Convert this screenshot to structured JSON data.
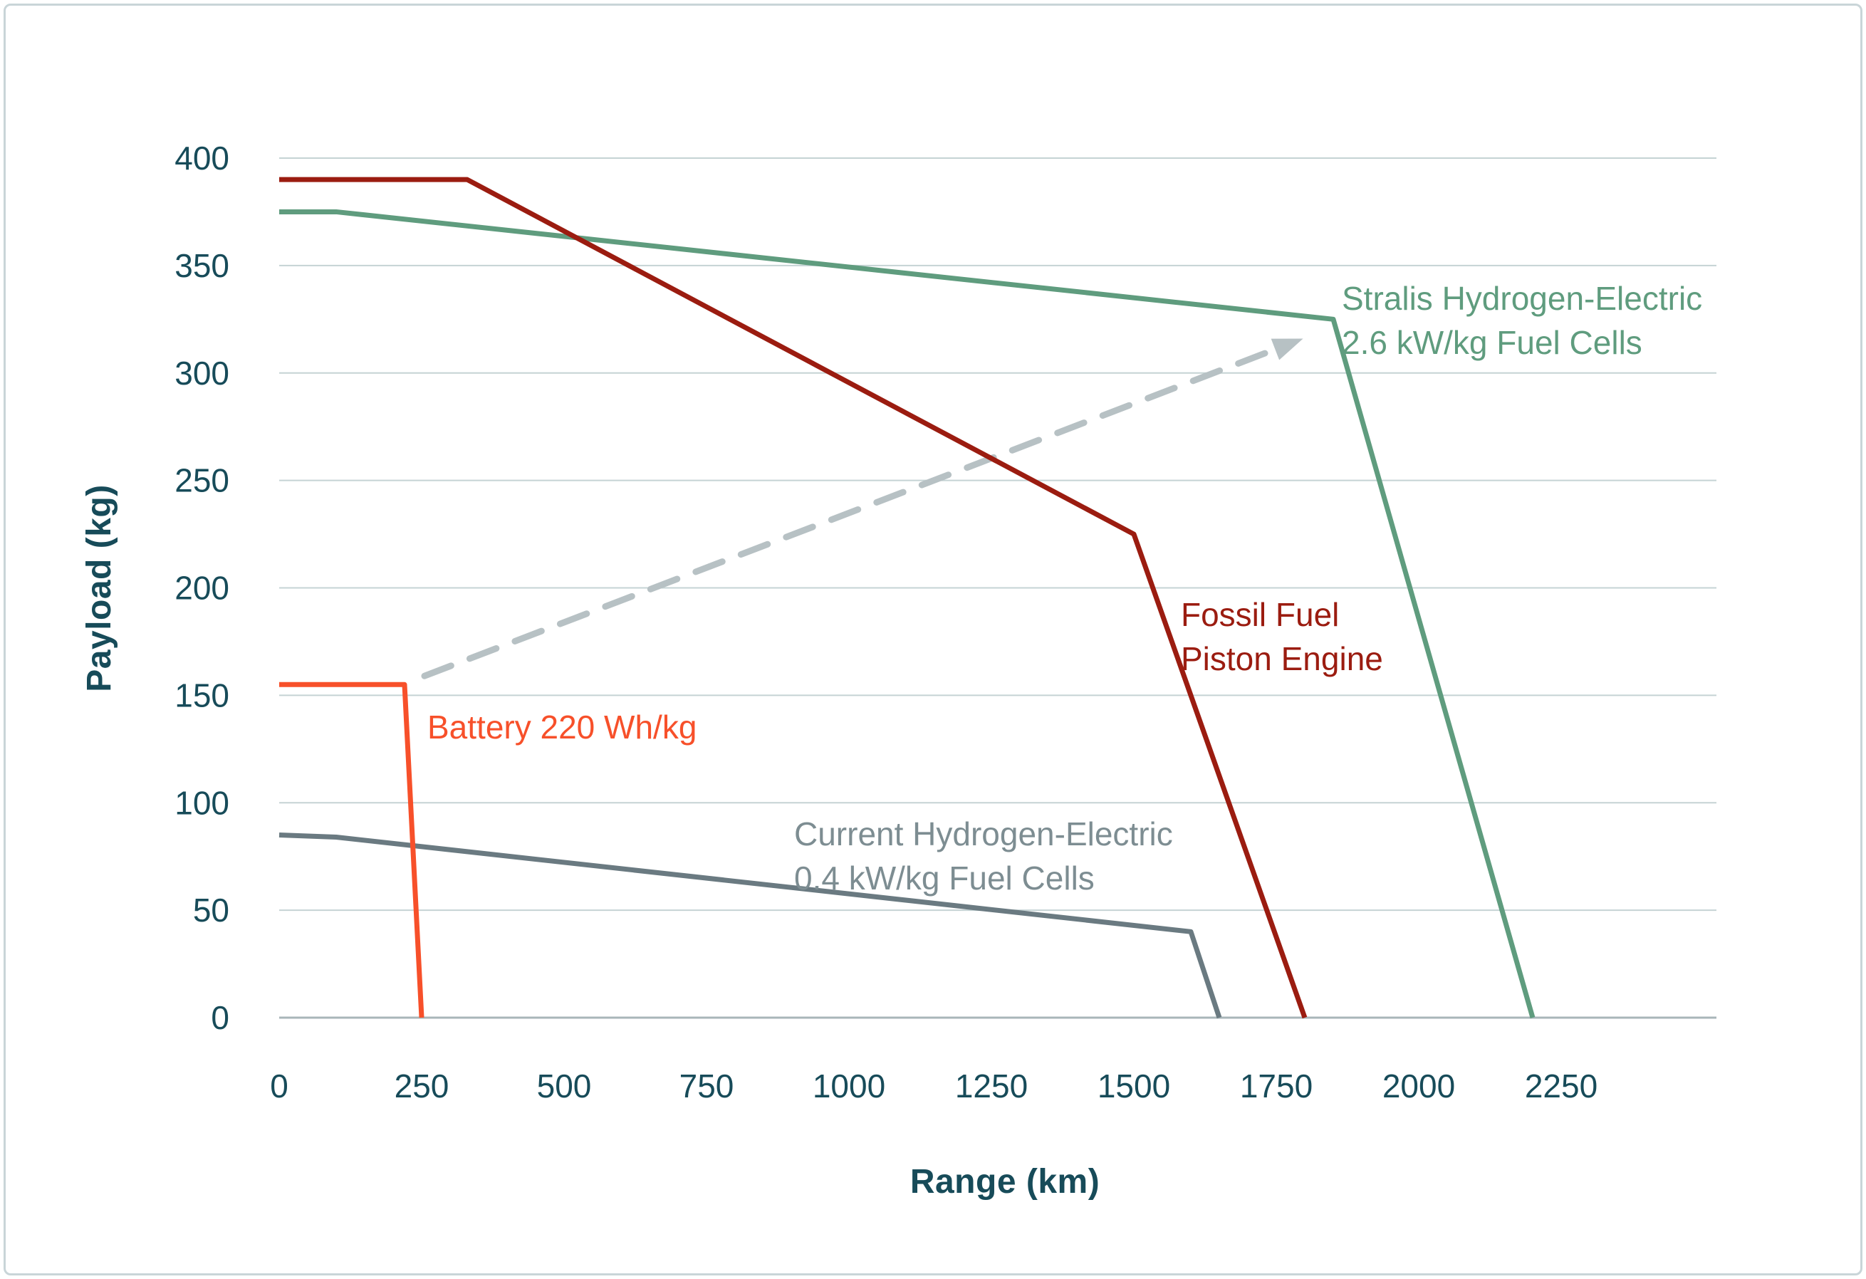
{
  "chart_data": {
    "type": "line",
    "xlabel": "Range (km)",
    "ylabel": "Payload (kg)",
    "x_ticks": [
      0,
      250,
      500,
      750,
      1000,
      1250,
      1500,
      1750,
      2000,
      2250
    ],
    "y_ticks": [
      0,
      50,
      100,
      150,
      200,
      250,
      300,
      350,
      400
    ],
    "xlim": [
      0,
      2520
    ],
    "ylim": [
      0,
      400
    ],
    "grid": "horizontal-only",
    "legend_position": "inline-labels",
    "colors": {
      "grid_line": "#c5d3d4",
      "axis_line": "#a8b6b9",
      "tick_text": "#174b59",
      "arrow": "#b7c1c4",
      "frame_border": "#c9d5d8"
    },
    "series": [
      {
        "id": "current",
        "name": "Current Hydrogen-Electric 0.4 kW/kg Fuel Cells",
        "label_text": "Current Hydrogen-Electric\n0.4 kW/kg Fuel Cells",
        "label_color": "#7d8d92",
        "color": "#6a7a81",
        "points": [
          [
            0,
            85
          ],
          [
            100,
            84
          ],
          [
            1600,
            40
          ],
          [
            1650,
            0
          ]
        ]
      },
      {
        "id": "stralis",
        "name": "Stralis Hydrogen-Electric 2.6 kW/kg Fuel Cells",
        "label_text": "Stralis Hydrogen-Electric\n2.6 kW/kg Fuel Cells",
        "label_color": "#5f9c7e",
        "color": "#5f9c7e",
        "points": [
          [
            0,
            375
          ],
          [
            100,
            375
          ],
          [
            1850,
            325
          ],
          [
            2200,
            0
          ]
        ]
      },
      {
        "id": "fossil",
        "name": "Fossil Fuel Piston Engine",
        "label_text": "Fossil Fuel\nPiston Engine",
        "label_color": "#9b1c10",
        "color": "#9b1c10",
        "points": [
          [
            0,
            390
          ],
          [
            330,
            390
          ],
          [
            1500,
            225
          ],
          [
            1800,
            0
          ]
        ]
      },
      {
        "id": "battery",
        "name": "Battery 220 Wh/kg",
        "label_text": "Battery 220 Wh/kg",
        "label_color": "#f7502a",
        "color": "#f7502a",
        "points": [
          [
            0,
            155
          ],
          [
            220,
            155
          ],
          [
            250,
            0
          ]
        ]
      }
    ],
    "annotation_arrow": {
      "style": "dashed",
      "color": "#b7c1c4",
      "from_km_kg": [
        255,
        159
      ],
      "to_km_kg": [
        1748,
        311
      ]
    }
  }
}
